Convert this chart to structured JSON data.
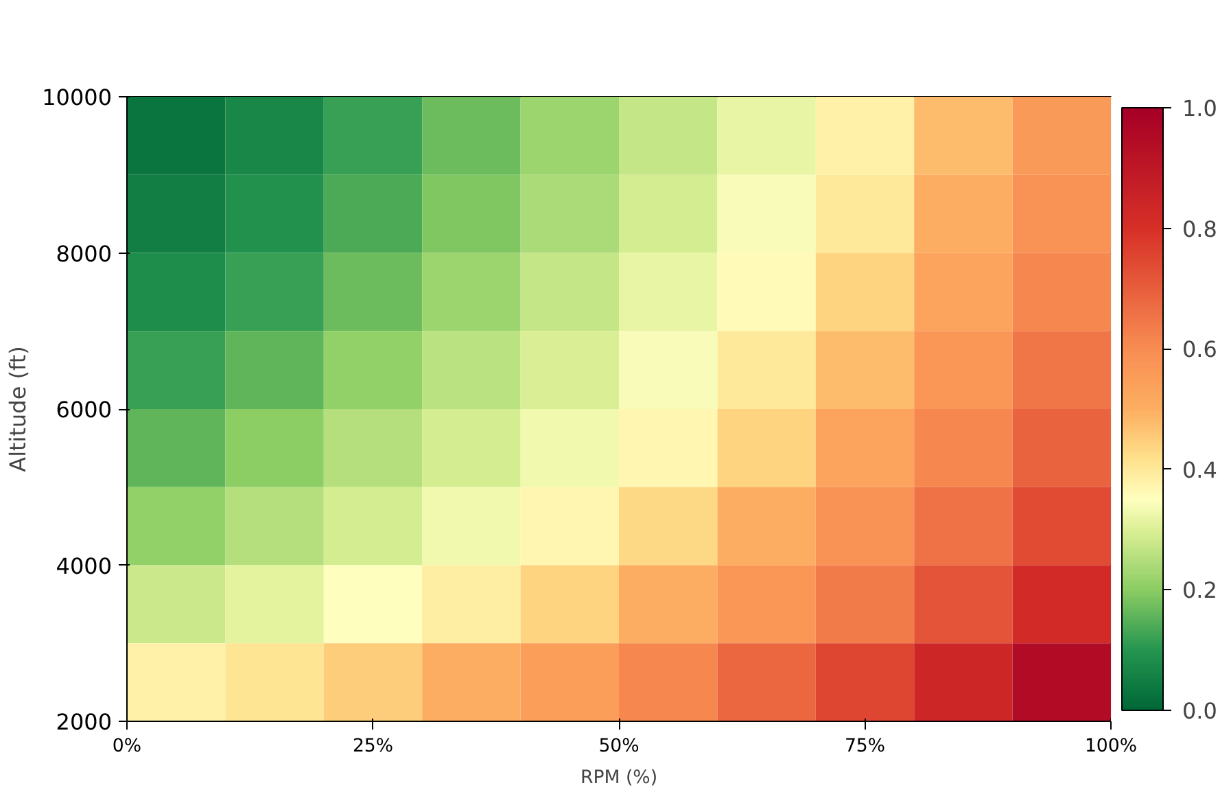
{
  "chart_data": {
    "type": "heatmap",
    "xlabel": "RPM (%)",
    "ylabel": "Altitude (ft)",
    "x": [
      5,
      15,
      25,
      35,
      45,
      55,
      65,
      75,
      85,
      95
    ],
    "y": [
      9500,
      8500,
      7500,
      6500,
      5500,
      4500,
      3500,
      2500
    ],
    "xlim": [
      0,
      100
    ],
    "xticks": [
      {
        "value": 0,
        "label": "0%"
      },
      {
        "value": 25,
        "label": "25%"
      },
      {
        "value": 50,
        "label": "50%"
      },
      {
        "value": 75,
        "label": "75%"
      },
      {
        "value": 100,
        "label": "100%"
      }
    ],
    "ylim": [
      2000,
      10000
    ],
    "yticks": [
      2000,
      4000,
      6000,
      8000,
      10000
    ],
    "cells": [
      [
        0.03,
        0.07,
        0.12,
        0.17,
        0.22,
        0.27,
        0.32,
        0.38,
        0.48,
        0.56
      ],
      [
        0.05,
        0.09,
        0.14,
        0.19,
        0.24,
        0.29,
        0.34,
        0.4,
        0.5,
        0.58
      ],
      [
        0.08,
        0.12,
        0.17,
        0.22,
        0.27,
        0.32,
        0.36,
        0.44,
        0.53,
        0.61
      ],
      [
        0.12,
        0.16,
        0.21,
        0.26,
        0.3,
        0.34,
        0.4,
        0.48,
        0.57,
        0.65
      ],
      [
        0.16,
        0.2,
        0.25,
        0.29,
        0.33,
        0.37,
        0.44,
        0.53,
        0.61,
        0.69
      ],
      [
        0.21,
        0.25,
        0.29,
        0.33,
        0.37,
        0.43,
        0.5,
        0.58,
        0.66,
        0.74
      ],
      [
        0.28,
        0.31,
        0.35,
        0.39,
        0.44,
        0.5,
        0.57,
        0.64,
        0.72,
        0.82
      ],
      [
        0.38,
        0.41,
        0.45,
        0.5,
        0.55,
        0.61,
        0.68,
        0.75,
        0.84,
        0.95
      ]
    ],
    "clim": [
      0,
      1
    ],
    "cticks": [
      {
        "value": 0,
        "label": "0.0"
      },
      {
        "value": 0.2,
        "label": "0.2"
      },
      {
        "value": 0.4,
        "label": "0.4"
      },
      {
        "value": 0.6,
        "label": "0.6"
      },
      {
        "value": 0.8,
        "label": "0.8"
      },
      {
        "value": 1,
        "label": "1.0"
      }
    ],
    "grid": false
  }
}
